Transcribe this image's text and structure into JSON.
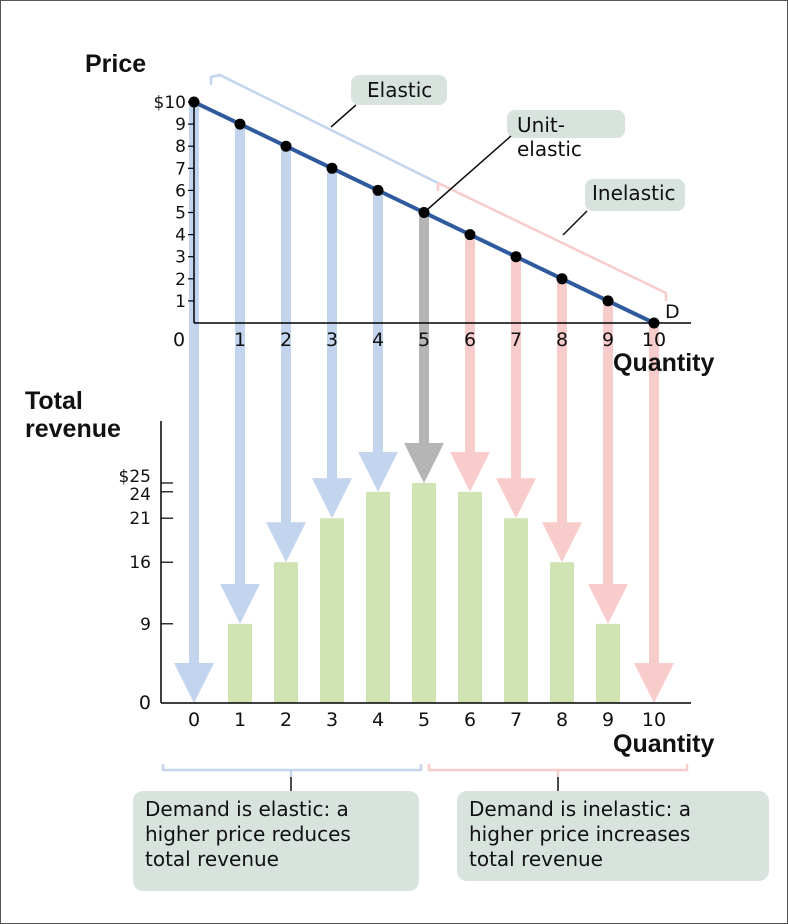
{
  "chart_data": [
    {
      "type": "line",
      "title": "",
      "ylabel": "Price",
      "xlabel": "Quantity",
      "series_label": "D",
      "x_ticks": [
        "0",
        "1",
        "2",
        "3",
        "4",
        "5",
        "6",
        "7",
        "8",
        "9",
        "10"
      ],
      "y_ticks": [
        "$10",
        "9",
        "8",
        "7",
        "6",
        "5",
        "4",
        "3",
        "2",
        "1"
      ],
      "xlim": [
        0,
        10
      ],
      "ylim": [
        0,
        10
      ],
      "points": [
        {
          "x": 0,
          "y": 10
        },
        {
          "x": 1,
          "y": 9
        },
        {
          "x": 2,
          "y": 8
        },
        {
          "x": 3,
          "y": 7
        },
        {
          "x": 4,
          "y": 6
        },
        {
          "x": 5,
          "y": 5
        },
        {
          "x": 6,
          "y": 4
        },
        {
          "x": 7,
          "y": 3
        },
        {
          "x": 8,
          "y": 2
        },
        {
          "x": 9,
          "y": 1
        },
        {
          "x": 10,
          "y": 0
        }
      ],
      "regions": [
        {
          "label": "Elastic",
          "from": 0,
          "to": 5
        },
        {
          "label": "Unit-\nelastic",
          "at": 5
        },
        {
          "label": "Inelastic",
          "from": 5,
          "to": 10
        }
      ]
    },
    {
      "type": "bar",
      "title": "",
      "ylabel": "Total\nrevenue",
      "xlabel": "Quantity",
      "categories": [
        "0",
        "1",
        "2",
        "3",
        "4",
        "5",
        "6",
        "7",
        "8",
        "9",
        "10"
      ],
      "values": [
        0,
        9,
        16,
        21,
        24,
        25,
        24,
        21,
        16,
        9,
        0
      ],
      "y_ticks": [
        "0",
        "9",
        "16",
        "21",
        "24",
        "$25"
      ],
      "ylim": [
        0,
        25
      ]
    }
  ],
  "colors": {
    "demand_line": "#2f5a9e",
    "elastic_arrow": "#c2d4ee",
    "unit_arrow": "#b5b5b5",
    "inelastic_arrow": "#f9cccc",
    "bar": "#d0e3b3",
    "note_box": "#d8e3de",
    "elastic_bracket": "#c2d4ee",
    "inelastic_bracket": "#f9cccc"
  },
  "notes": {
    "elastic": "Demand is elastic: a\nhigher price reduces\ntotal revenue",
    "inelastic": "Demand is inelastic: a\nhigher price increases\ntotal revenue"
  }
}
